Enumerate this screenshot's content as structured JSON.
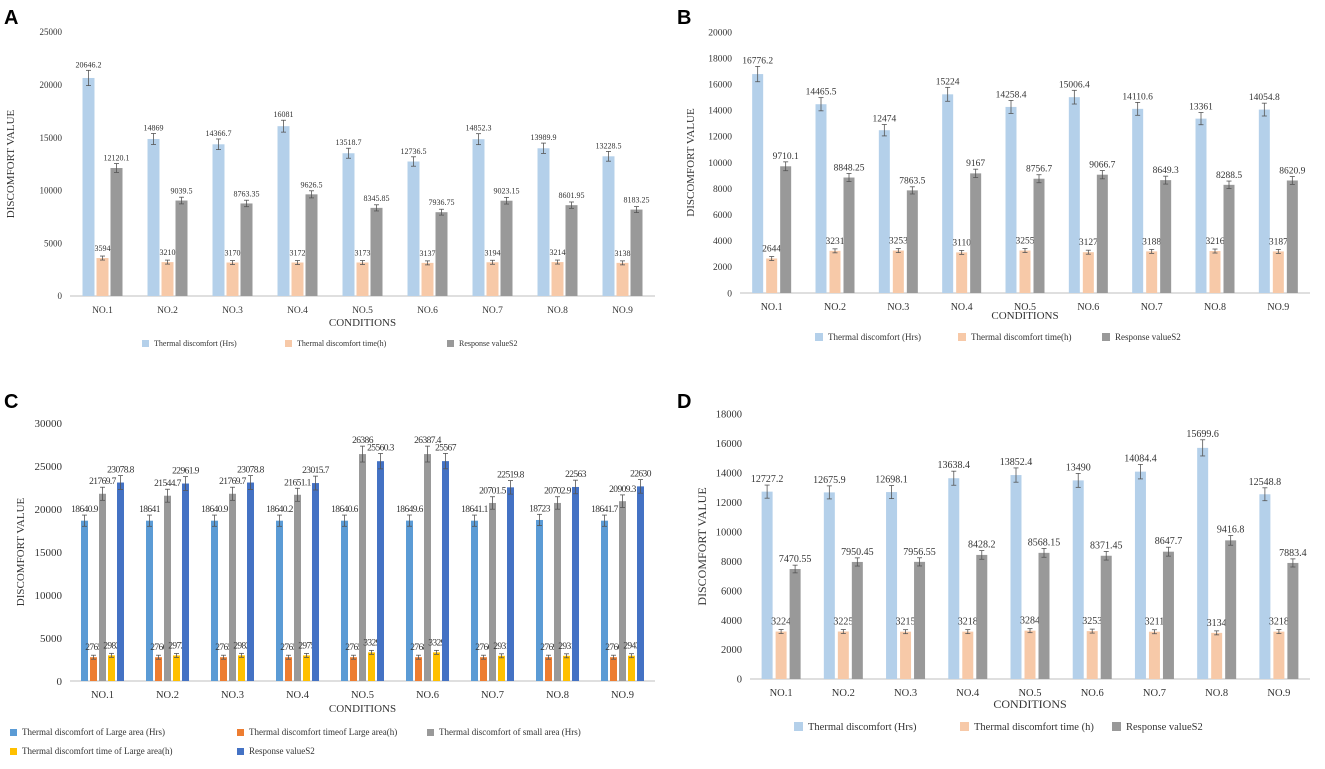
{
  "colors": {
    "light_blue": "#b4d0ea",
    "peach": "#f7c9a8",
    "gray": "#999999",
    "mid_blue": "#5b9bd5",
    "orange": "#ed7d31",
    "yellow": "#ffc000",
    "dark_blue": "#4472c4",
    "axis_text": "#333333"
  },
  "chart_data": [
    {
      "panel": "A",
      "type": "bar",
      "xlabel": "CONDITIONS",
      "ylabel": "DISCOMFORT VALUE",
      "ylim": [
        0,
        25000
      ],
      "yticks": [
        "0",
        "5000",
        "10000",
        "15000",
        "20000",
        "25000"
      ],
      "categories": [
        "NO.1",
        "NO.2",
        "NO.3",
        "NO.4",
        "NO.5",
        "NO.6",
        "NO.7",
        "NO.8",
        "NO.9"
      ],
      "series": [
        {
          "name": "Thermal discomfort (Hrs)",
          "color": "#b4d0ea",
          "values": [
            20646.2,
            14869,
            14366.7,
            16081,
            13518.7,
            12736.5,
            14852.3,
            13989.9,
            13228.5
          ],
          "labels": [
            "20646.2",
            "14869",
            "14366.7",
            "16081",
            "13518.7",
            "12736.5",
            "14852.3",
            "13989.9",
            "13228.5"
          ]
        },
        {
          "name": "Thermal discomfort time(h)",
          "color": "#f7c9a8",
          "values": [
            3594,
            3210,
            3170,
            3172,
            3173,
            3137,
            3194,
            3214,
            3138
          ],
          "labels": [
            "3594",
            "3210",
            "3170",
            "3172",
            "3173",
            "3137",
            "3194",
            "3214",
            "3138"
          ]
        },
        {
          "name": "Response valueS2",
          "color": "#999999",
          "values": [
            12120.1,
            9039.5,
            8763.35,
            9626.5,
            8345.85,
            7936.75,
            9023.15,
            8601.95,
            8183.25
          ],
          "labels": [
            "12120.1",
            "9039.5",
            "8763.35",
            "9626.5",
            "8345.85",
            "7936.75",
            "9023.15",
            "8601.95",
            "8183.25"
          ]
        }
      ]
    },
    {
      "panel": "B",
      "type": "bar",
      "xlabel": "CONDITIONS",
      "ylabel": "DISCOMFORT VALUE",
      "ylim": [
        0,
        20000
      ],
      "yticks": [
        "0",
        "2000",
        "4000",
        "6000",
        "8000",
        "10000",
        "12000",
        "14000",
        "16000",
        "18000",
        "20000"
      ],
      "categories": [
        "NO.1",
        "NO.2",
        "NO.3",
        "NO.4",
        "NO.5",
        "NO.6",
        "NO.7",
        "NO.8",
        "NO.9"
      ],
      "series": [
        {
          "name": "Thermal discomfort  (Hrs)",
          "color": "#b4d0ea",
          "values": [
            16776.2,
            14465.5,
            12474,
            15224,
            14258.4,
            15006.4,
            14110.6,
            13361,
            14054.8
          ],
          "labels": [
            "16776.2",
            "14465.5",
            "12474",
            "15224",
            "14258.4",
            "15006.4",
            "14110.6",
            "13361",
            "14054.8"
          ]
        },
        {
          "name": "Thermal discomfort time(h)",
          "color": "#f7c9a8",
          "values": [
            2644,
            3231,
            3253,
            3110,
            3255,
            3127,
            3188,
            3216,
            3187
          ],
          "labels": [
            "2644",
            "3231",
            "3253",
            "3110",
            "3255",
            "3127",
            "3188",
            "3216",
            "3187"
          ]
        },
        {
          "name": "Response valueS2",
          "color": "#999999",
          "values": [
            9710.1,
            8848.25,
            7863.5,
            9167,
            8756.7,
            9066.7,
            8649.3,
            8288.5,
            8620.9
          ],
          "labels": [
            "9710.1",
            "8848.25",
            "7863.5",
            "9167",
            "8756.7",
            "9066.7",
            "8649.3",
            "8288.5",
            "8620.9"
          ]
        }
      ]
    },
    {
      "panel": "C",
      "type": "bar",
      "xlabel": "CONDITIONS",
      "ylabel": "DISCOMFORT VALUE",
      "ylim": [
        0,
        30000
      ],
      "yticks": [
        "0",
        "5000",
        "10000",
        "15000",
        "20000",
        "25000",
        "30000"
      ],
      "categories": [
        "NO.1",
        "NO.2",
        "NO.3",
        "NO.4",
        "NO.5",
        "NO.6",
        "NO.7",
        "NO.8",
        "NO.9"
      ],
      "series": [
        {
          "name": "Thermal discomfort  of Large area (Hrs)",
          "color": "#5b9bd5",
          "values": [
            18640.9,
            18641,
            18640.9,
            18640.2,
            18640.6,
            18649.6,
            18641.1,
            18723,
            18641.7
          ],
          "labels": [
            "18640.9",
            "18641",
            "18640.9",
            "18640.2",
            "18640.6",
            "18649.6",
            "18641.1",
            "18723",
            "18641.7"
          ]
        },
        {
          "name": "Thermal discomfort timeof Large area(h)",
          "color": "#ed7d31",
          "values": [
            2765,
            2766,
            2765,
            2765,
            2765,
            2768,
            2766,
            2769,
            2766
          ],
          "labels": [
            "2765",
            "2766",
            "2765",
            "2765",
            "2765",
            "2768",
            "2766",
            "2769",
            "2766"
          ]
        },
        {
          "name": "Thermal discomfort  of small area (Hrs)",
          "color": "#999999",
          "values": [
            21769.7,
            21544.7,
            21769.7,
            21651.1,
            26386,
            26387.4,
            20701.5,
            20702.9,
            20909.3
          ],
          "labels": [
            "21769.7",
            "21544.7",
            "21769.7",
            "21651.1",
            "26386",
            "26387.4",
            "20701.5",
            "20702.9",
            "20909.3"
          ]
        },
        {
          "name": "Thermal discomfort time of Large area(h)",
          "color": "#ffc000",
          "values": [
            2982,
            2972,
            2982,
            2975,
            3329,
            3329,
            2931,
            2931,
            2943
          ],
          "labels": [
            "2982",
            "2972",
            "2982",
            "2975",
            "3329",
            "3329",
            "2931",
            "2931",
            "2943"
          ]
        },
        {
          "name": "Response valueS2",
          "color": "#4472c4",
          "values": [
            23078.8,
            22961.9,
            23078.8,
            23015.7,
            25560.3,
            25567,
            22519.8,
            22563,
            22630
          ],
          "labels": [
            "23078.8",
            "22961.9",
            "23078.8",
            "23015.7",
            "25560.3",
            "25567",
            "22519.8",
            "22563",
            "22630"
          ]
        }
      ]
    },
    {
      "panel": "D",
      "type": "bar",
      "xlabel": "CONDITIONS",
      "ylabel": "DISCOMFORT VALUE",
      "ylim": [
        0,
        18000
      ],
      "yticks": [
        "0",
        "2000",
        "4000",
        "6000",
        "8000",
        "10000",
        "12000",
        "14000",
        "16000",
        "18000"
      ],
      "categories": [
        "NO.1",
        "NO.2",
        "NO.3",
        "NO.4",
        "NO.5",
        "NO.6",
        "NO.7",
        "NO.8",
        "NO.9"
      ],
      "series": [
        {
          "name": "Thermal discomfort  (Hrs)",
          "color": "#b4d0ea",
          "values": [
            12727.2,
            12675.9,
            12698.1,
            13638.4,
            13852.4,
            13490,
            14084.4,
            15699.6,
            12548.8
          ],
          "labels": [
            "12727.2",
            "12675.9",
            "12698.1",
            "13638.4",
            "13852.4",
            "13490",
            "14084.4",
            "15699.6",
            "12548.8"
          ]
        },
        {
          "name": "Thermal discomfort time (h)",
          "color": "#f7c9a8",
          "values": [
            3224,
            3225,
            3215,
            3218,
            3284,
            3253,
            3211,
            3134,
            3218
          ],
          "labels": [
            "3224",
            "3225",
            "3215",
            "3218",
            "3284",
            "3253",
            "3211",
            "3134",
            "3218"
          ]
        },
        {
          "name": "Response valueS2",
          "color": "#999999",
          "values": [
            7470.55,
            7950.45,
            7956.55,
            8428.2,
            8568.15,
            8371.45,
            8647.7,
            9416.8,
            7883.4
          ],
          "labels": [
            "7470.55",
            "7950.45",
            "7956.55",
            "8428.2",
            "8568.15",
            "8371.45",
            "8647.7",
            "9416.8",
            "7883.4"
          ]
        }
      ]
    }
  ]
}
